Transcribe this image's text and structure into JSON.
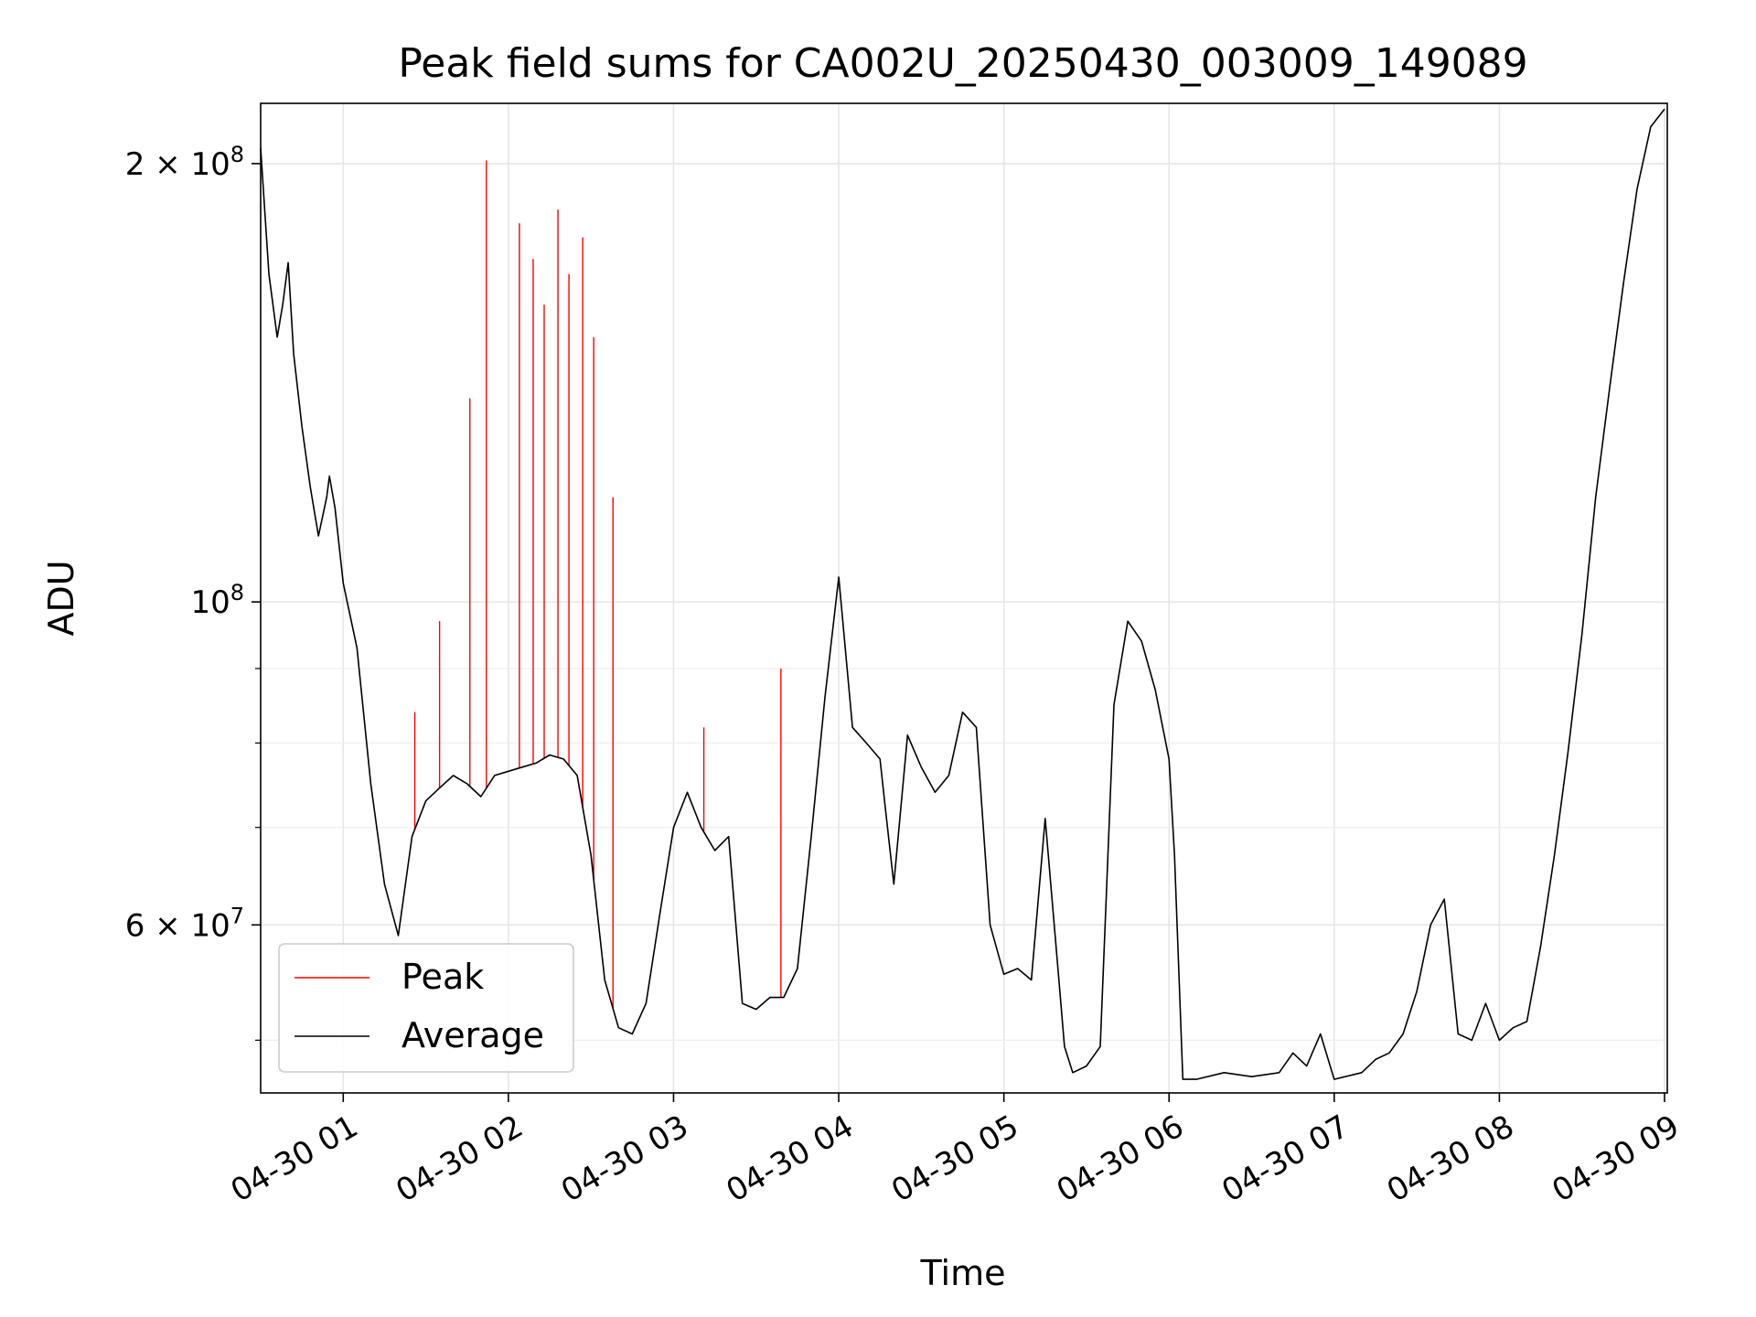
{
  "chart_data": {
    "type": "line",
    "title": "Peak field sums for CA002U_20250430_003009_149089",
    "xlabel": "Time",
    "ylabel": "ADU",
    "x_ticks": [
      "04-30 01",
      "04-30 02",
      "04-30 03",
      "04-30 04",
      "04-30 05",
      "04-30 06",
      "04-30 07",
      "04-30 08",
      "04-30 09"
    ],
    "x_range": [
      "2025-04-30T00:30",
      "2025-04-30T09:01"
    ],
    "y_scale": "log",
    "y_range": [
      46000000,
      220000000
    ],
    "y_major_ticks": [
      {
        "value": 60000000,
        "base": "6 × 10",
        "exp": "7"
      },
      {
        "value": 100000000,
        "base": "10",
        "exp": "8"
      },
      {
        "value": 200000000,
        "base": "2 × 10",
        "exp": "8"
      }
    ],
    "y_minor_ticks": [
      50000000,
      70000000,
      80000000,
      90000000
    ],
    "grid": true,
    "legend": {
      "position": "lower-left",
      "entries": [
        "Peak",
        "Average"
      ]
    },
    "colors": {
      "Peak": "#ff0000",
      "Average": "#000000"
    },
    "series": [
      {
        "name": "Average",
        "x": [
          "2025-04-30T00:30",
          "2025-04-30T00:33",
          "2025-04-30T00:36",
          "2025-04-30T00:38",
          "2025-04-30T00:40",
          "2025-04-30T00:42",
          "2025-04-30T00:45",
          "2025-04-30T00:48",
          "2025-04-30T00:51",
          "2025-04-30T00:54",
          "2025-04-30T00:55",
          "2025-04-30T00:57",
          "2025-04-30T01:00",
          "2025-04-30T01:05",
          "2025-04-30T01:10",
          "2025-04-30T01:15",
          "2025-04-30T01:20",
          "2025-04-30T01:25",
          "2025-04-30T01:30",
          "2025-04-30T01:35",
          "2025-04-30T01:40",
          "2025-04-30T01:45",
          "2025-04-30T01:50",
          "2025-04-30T01:55",
          "2025-04-30T02:00",
          "2025-04-30T02:05",
          "2025-04-30T02:10",
          "2025-04-30T02:15",
          "2025-04-30T02:20",
          "2025-04-30T02:25",
          "2025-04-30T02:30",
          "2025-04-30T02:35",
          "2025-04-30T02:40",
          "2025-04-30T02:45",
          "2025-04-30T02:50",
          "2025-04-30T02:55",
          "2025-04-30T03:00",
          "2025-04-30T03:05",
          "2025-04-30T03:10",
          "2025-04-30T03:15",
          "2025-04-30T03:20",
          "2025-04-30T03:25",
          "2025-04-30T03:30",
          "2025-04-30T03:35",
          "2025-04-30T03:40",
          "2025-04-30T03:45",
          "2025-04-30T03:50",
          "2025-04-30T03:55",
          "2025-04-30T04:00",
          "2025-04-30T04:05",
          "2025-04-30T04:10",
          "2025-04-30T04:15",
          "2025-04-30T04:17",
          "2025-04-30T04:20",
          "2025-04-30T04:25",
          "2025-04-30T04:30",
          "2025-04-30T04:35",
          "2025-04-30T04:40",
          "2025-04-30T04:45",
          "2025-04-30T04:50",
          "2025-04-30T04:55",
          "2025-04-30T05:00",
          "2025-04-30T05:05",
          "2025-04-30T05:10",
          "2025-04-30T05:15",
          "2025-04-30T05:20",
          "2025-04-30T05:22",
          "2025-04-30T05:25",
          "2025-04-30T05:30",
          "2025-04-30T05:35",
          "2025-04-30T05:40",
          "2025-04-30T05:45",
          "2025-04-30T05:50",
          "2025-04-30T05:55",
          "2025-04-30T06:00",
          "2025-04-30T06:02",
          "2025-04-30T06:05",
          "2025-04-30T06:10",
          "2025-04-30T06:20",
          "2025-04-30T06:30",
          "2025-04-30T06:40",
          "2025-04-30T06:45",
          "2025-04-30T06:50",
          "2025-04-30T06:55",
          "2025-04-30T07:00",
          "2025-04-30T07:10",
          "2025-04-30T07:15",
          "2025-04-30T07:20",
          "2025-04-30T07:25",
          "2025-04-30T07:30",
          "2025-04-30T07:35",
          "2025-04-30T07:40",
          "2025-04-30T07:45",
          "2025-04-30T07:50",
          "2025-04-30T07:55",
          "2025-04-30T08:00",
          "2025-04-30T08:05",
          "2025-04-30T08:10",
          "2025-04-30T08:15",
          "2025-04-30T08:20",
          "2025-04-30T08:25",
          "2025-04-30T08:30",
          "2025-04-30T08:35",
          "2025-04-30T08:40",
          "2025-04-30T08:45",
          "2025-04-30T08:50",
          "2025-04-30T08:55",
          "2025-04-30T09:00"
        ],
        "values": [
          205000000,
          168000000,
          152000000,
          160000000,
          171000000,
          148000000,
          132000000,
          120000000,
          111000000,
          118000000,
          122000000,
          116000000,
          103000000,
          93000000,
          75000000,
          64000000,
          59000000,
          69000000,
          73000000,
          74500000,
          76000000,
          75000000,
          73500000,
          76000000,
          76500000,
          77000000,
          77500000,
          78500000,
          78000000,
          76000000,
          67000000,
          55000000,
          51000000,
          50500000,
          53000000,
          61000000,
          70000000,
          74000000,
          70000000,
          67500000,
          69000000,
          53000000,
          52500000,
          53500000,
          53500000,
          56000000,
          69000000,
          86000000,
          104000000,
          82000000,
          80000000,
          78000000,
          72000000,
          64000000,
          81000000,
          77000000,
          74000000,
          76000000,
          84000000,
          82000000,
          60000000,
          55500000,
          56000000,
          55000000,
          71000000,
          55000000,
          49500000,
          47500000,
          48000000,
          49500000,
          85000000,
          97000000,
          94000000,
          87000000,
          78000000,
          67000000,
          47000000,
          47000000,
          47500000,
          47200000,
          47500000,
          49000000,
          48000000,
          50500000,
          47000000,
          47500000,
          48500000,
          49000000,
          50500000,
          54000000,
          60000000,
          62500000,
          50500000,
          50000000,
          53000000,
          50000000,
          51000000,
          51500000,
          58000000,
          67000000,
          79000000,
          95000000,
          118000000,
          140000000,
          165000000,
          192000000,
          212000000,
          218000000
        ]
      },
      {
        "name": "Peak",
        "x": [
          "2025-04-30T01:26",
          "2025-04-30T01:35",
          "2025-04-30T01:46",
          "2025-04-30T01:52",
          "2025-04-30T02:04",
          "2025-04-30T02:09",
          "2025-04-30T02:13",
          "2025-04-30T02:18",
          "2025-04-30T02:22",
          "2025-04-30T02:27",
          "2025-04-30T02:31",
          "2025-04-30T02:38",
          "2025-04-30T03:11",
          "2025-04-30T03:39"
        ],
        "values": [
          84000000,
          97000000,
          138000000,
          201000000,
          182000000,
          172000000,
          160000000,
          186000000,
          168000000,
          178000000,
          152000000,
          118000000,
          82000000,
          90000000
        ]
      }
    ]
  }
}
